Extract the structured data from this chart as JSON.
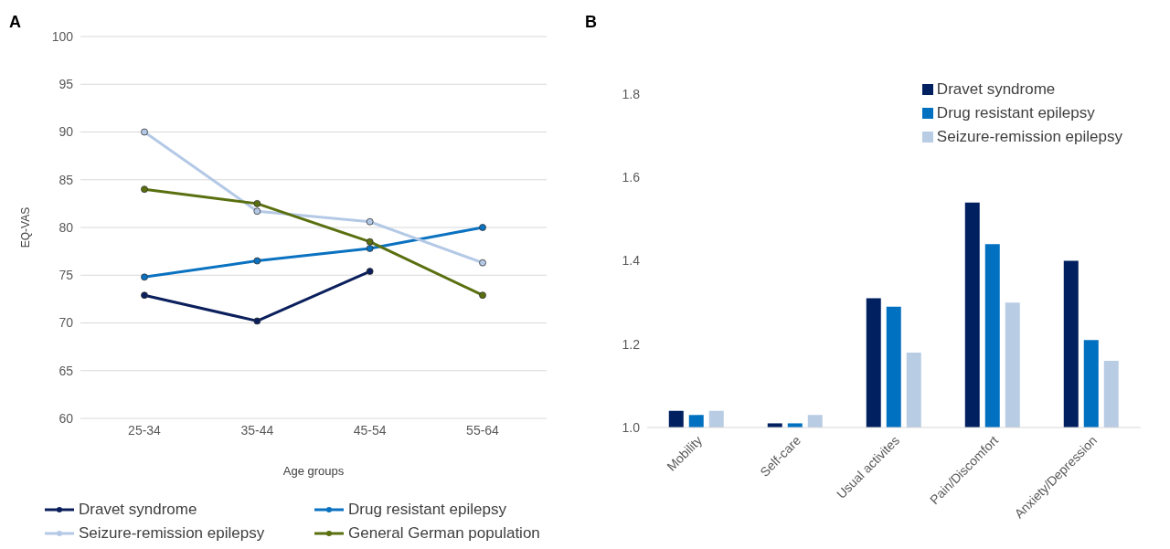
{
  "chart_data": [
    {
      "type": "line",
      "annotations": [
        "A"
      ],
      "xlabel": "Age groups",
      "ylabel": "EQ-VAS",
      "categories": [
        "25-34",
        "35-44",
        "45-54",
        "55-64"
      ],
      "series": [
        {
          "name": "Dravet syndrome",
          "color": "#0a1f5c",
          "values": [
            72.9,
            70.2,
            75.4,
            null
          ]
        },
        {
          "name": "Drug resistant epilepsy",
          "color": "#0a72c0",
          "values": [
            74.8,
            76.5,
            77.8,
            80.0
          ]
        },
        {
          "name": "Seizure-remission epilepsy",
          "color": "#b4c9e6",
          "values": [
            90.0,
            81.7,
            80.6,
            76.3
          ]
        },
        {
          "name": "General German population",
          "color": "#5a7010",
          "values": [
            84.0,
            82.5,
            78.5,
            72.9
          ]
        }
      ],
      "ylim": [
        60,
        100
      ],
      "yticks": [
        60,
        65,
        70,
        75,
        80,
        85,
        90,
        95,
        100
      ],
      "grid": "y",
      "legend": "bottom",
      "marker": "circle",
      "line_style": "solid"
    },
    {
      "type": "bar",
      "annotations": [
        "B"
      ],
      "categories": [
        "Mobility",
        "Self-care",
        "Usual activites",
        "Pain/Discomfort",
        "Anxiety/Depression"
      ],
      "series": [
        {
          "name": "Dravet syndrome",
          "color": "#002060",
          "values": [
            1.04,
            1.01,
            1.31,
            1.54,
            1.4
          ]
        },
        {
          "name": "Drug resistant epilepsy",
          "color": "#0070c0",
          "values": [
            1.03,
            1.01,
            1.29,
            1.44,
            1.21
          ]
        },
        {
          "name": "Seizure-remission epilepsy",
          "color": "#b8cce4",
          "values": [
            1.04,
            1.03,
            1.18,
            1.3,
            1.16
          ]
        }
      ],
      "ylim": [
        1.0,
        1.8
      ],
      "yticks": [
        {
          "value": 1.0,
          "label": "1.0"
        },
        {
          "value": 1.2,
          "label": "1.2"
        },
        {
          "value": 1.4,
          "label": "1.4"
        },
        {
          "value": 1.6,
          "label": "1.6"
        },
        {
          "value": 1.8,
          "label": "1.8"
        }
      ],
      "legend": "top right"
    }
  ]
}
